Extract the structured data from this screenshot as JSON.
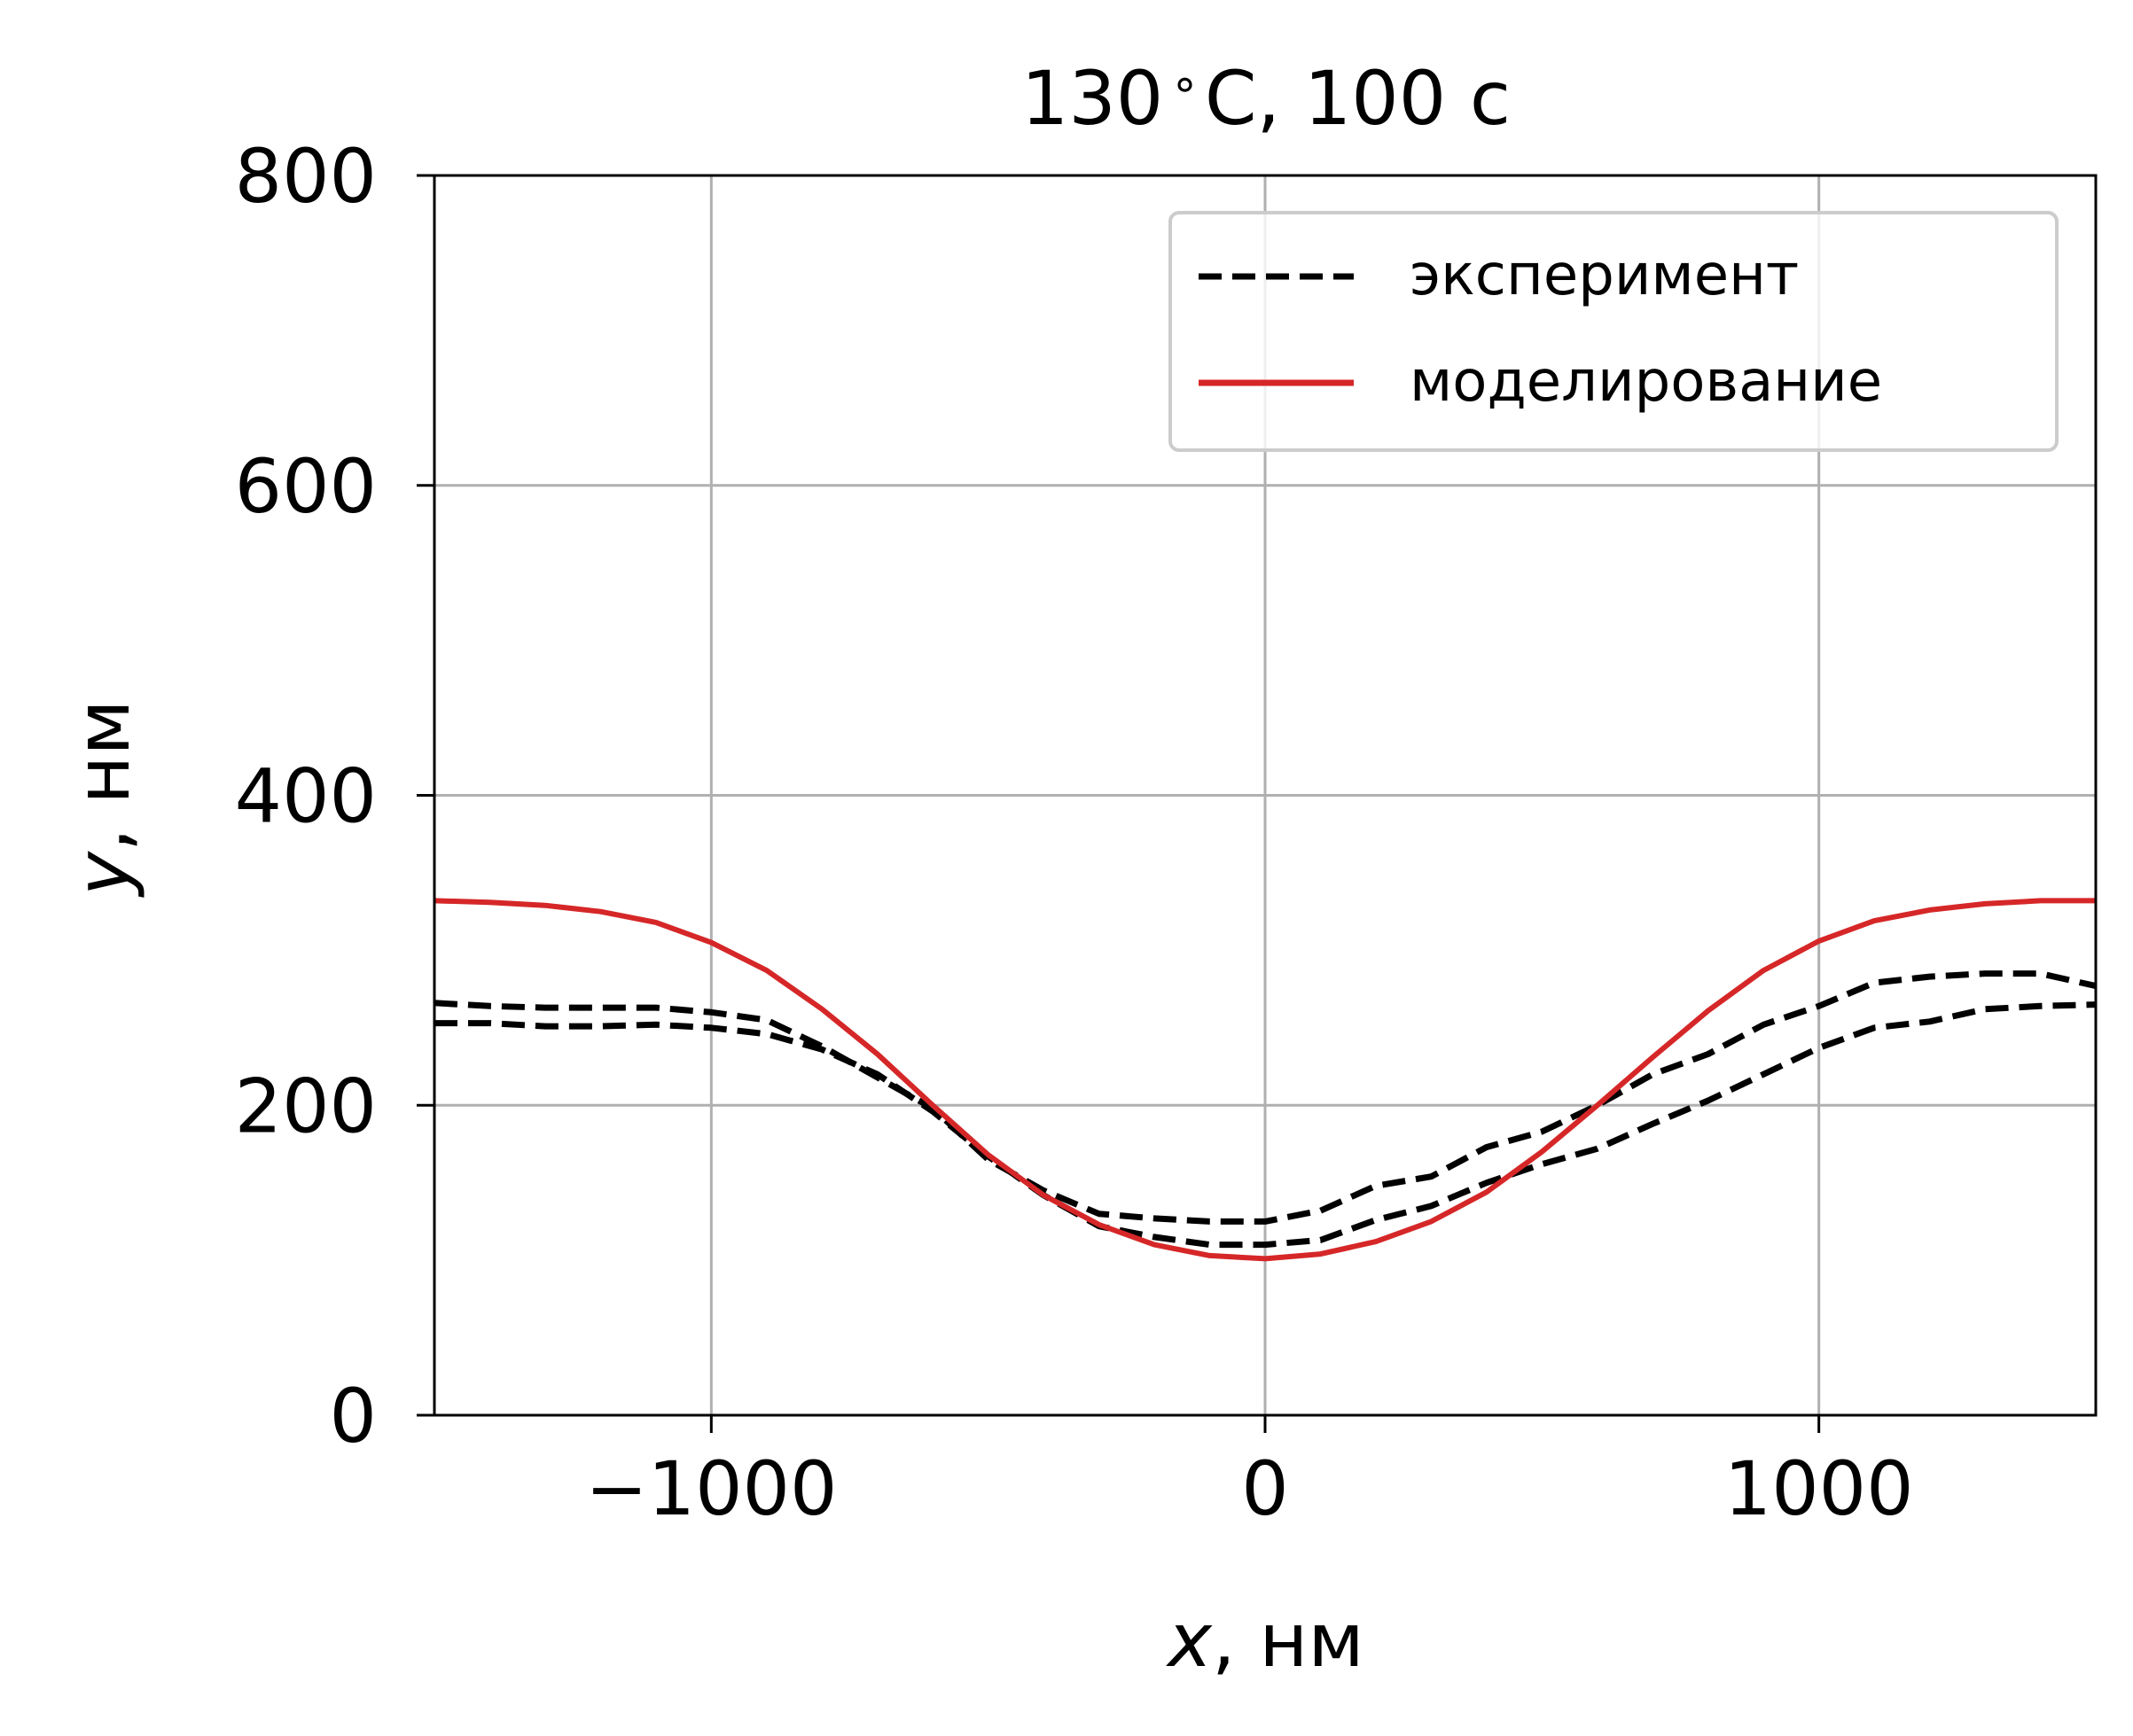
{
  "chart_data": {
    "type": "line",
    "title": "130$^\\circ$C, 100 с",
    "title_display": {
      "pre": "130",
      "deg": "∘",
      "post": "C, 100 с"
    },
    "xlabel": {
      "var": "x",
      "rest": ", нм"
    },
    "ylabel": {
      "var": "y",
      "rest": ", нм"
    },
    "xlim": [
      -1500,
      1500
    ],
    "ylim": [
      0,
      800
    ],
    "xticks": [
      -1000,
      0,
      1000
    ],
    "xtick_labels": [
      "−1000",
      "0",
      "1000"
    ],
    "yticks": [
      0,
      200,
      400,
      600,
      800
    ],
    "ytick_labels": [
      "0",
      "200",
      "400",
      "600",
      "800"
    ],
    "grid": true,
    "legend_position": "upper-right",
    "legend": [
      {
        "label": "эксперимент",
        "color": "#000000",
        "style": "dashed"
      },
      {
        "label": "моделирование",
        "color": "#d62728",
        "style": "solid"
      }
    ],
    "series": [
      {
        "name": "эксперимент",
        "color": "#000000",
        "style": "dashed",
        "x": [
          -1500,
          -1400,
          -1300,
          -1200,
          -1100,
          -1000,
          -900,
          -800,
          -700,
          -600,
          -500,
          -400,
          -300,
          -200,
          -100,
          0,
          100,
          200,
          300,
          400,
          500,
          600,
          700,
          800,
          900,
          1000,
          1100,
          1200,
          1300,
          1400,
          1500
        ],
        "y": [
          266,
          264,
          263,
          263,
          263,
          260,
          255,
          238,
          218,
          198,
          165,
          145,
          130,
          127,
          125,
          125,
          132,
          148,
          154,
          173,
          183,
          200,
          220,
          233,
          252,
          264,
          279,
          283,
          285,
          285,
          277
        ]
      },
      {
        "name": "эксперимент",
        "color": "#000000",
        "style": "dashed",
        "x": [
          -1500,
          -1400,
          -1300,
          -1200,
          -1100,
          -1000,
          -900,
          -800,
          -700,
          -600,
          -500,
          -400,
          -300,
          -200,
          -100,
          0,
          100,
          200,
          300,
          400,
          500,
          600,
          700,
          800,
          900,
          1000,
          1100,
          1200,
          1300,
          1400,
          1500
        ],
        "y": [
          253,
          253,
          251,
          251,
          252,
          250,
          246,
          236,
          220,
          196,
          167,
          142,
          122,
          115,
          110,
          110,
          113,
          126,
          135,
          150,
          162,
          172,
          188,
          203,
          220,
          237,
          250,
          254,
          262,
          264,
          265
        ]
      },
      {
        "name": "моделирование",
        "color": "#d62728",
        "style": "solid",
        "x": [
          -1500,
          -1400,
          -1300,
          -1200,
          -1100,
          -1000,
          -900,
          -800,
          -700,
          -600,
          -500,
          -400,
          -300,
          -200,
          -100,
          0,
          100,
          200,
          300,
          400,
          500,
          600,
          700,
          800,
          900,
          1000,
          1100,
          1200,
          1300,
          1400,
          1500
        ],
        "y": [
          332,
          331,
          329,
          325,
          318,
          305,
          287,
          262,
          233,
          200,
          168,
          142,
          123,
          110,
          103,
          101,
          104,
          112,
          125,
          144,
          170,
          200,
          231,
          261,
          287,
          306,
          319,
          326,
          330,
          332,
          332
        ]
      }
    ]
  }
}
